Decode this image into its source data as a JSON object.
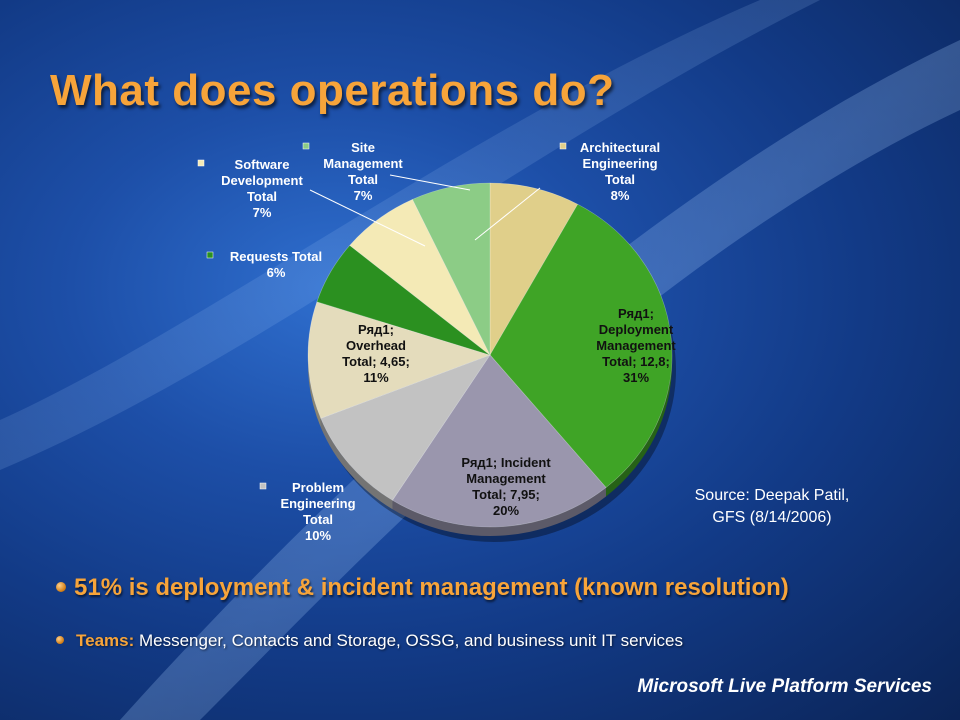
{
  "slide": {
    "title": "What does operations do?",
    "source_line1": "Source: Deepak Patil,",
    "source_line2": "GFS (8/14/2006)",
    "bullet1": "51% is deployment & incident management (known resolution)",
    "bullet2_label": "Teams:",
    "bullet2_text": " Messenger, Contacts and Storage, OSSG, and business unit IT services",
    "footer": "Microsoft Live Platform Services"
  },
  "colors": {
    "title": "#f7a43a",
    "background": "#1d4fa8"
  },
  "chart_data": {
    "type": "pie",
    "title": "",
    "slices": [
      {
        "name": "Architectural Engineering Total",
        "percent": 8,
        "color": "#e0cf8a",
        "label_lines": [
          "Architectural",
          "Engineering",
          "Total",
          "8%"
        ],
        "label_color": "light",
        "marker": true
      },
      {
        "name": "Deployment Management Total",
        "value": 12.8,
        "percent": 31,
        "color": "#3fa426",
        "label_lines": [
          "Ряд1;",
          "Deployment",
          "Management",
          "Total; 12,8;",
          "31%"
        ],
        "label_color": "dark",
        "marker": false
      },
      {
        "name": "Incident Management Total",
        "value": 7.95,
        "percent": 20,
        "color": "#9a96ad",
        "label_lines": [
          "Ряд1; Incident",
          "Management",
          "Total; 7,95;",
          "20%"
        ],
        "label_color": "dark",
        "marker": false
      },
      {
        "name": "Problem Engineering Total",
        "percent": 10,
        "color": "#c2c2c2",
        "label_lines": [
          "Problem",
          "Engineering",
          "Total",
          "10%"
        ],
        "label_color": "light",
        "marker": true
      },
      {
        "name": "Overhead Total",
        "value": 4.65,
        "percent": 11,
        "color": "#e4dcbc",
        "label_lines": [
          "Ряд1;",
          "Overhead",
          "Total; 4,65;",
          "11%"
        ],
        "label_color": "dark",
        "marker": false
      },
      {
        "name": "Requests Total",
        "percent": 6,
        "color": "#2b9020",
        "label_lines": [
          "Requests Total",
          "6%"
        ],
        "label_color": "light",
        "marker": true
      },
      {
        "name": "Software Development Total",
        "percent": 7,
        "color": "#f4eab6",
        "label_lines": [
          "Software",
          "Development",
          "Total",
          "7%"
        ],
        "label_color": "light",
        "marker": true
      },
      {
        "name": "Site Management Total",
        "percent": 7,
        "color": "#8ccc86",
        "label_lines": [
          "Site",
          "Management",
          "Total",
          "7%"
        ],
        "label_color": "light",
        "marker": true
      }
    ]
  }
}
